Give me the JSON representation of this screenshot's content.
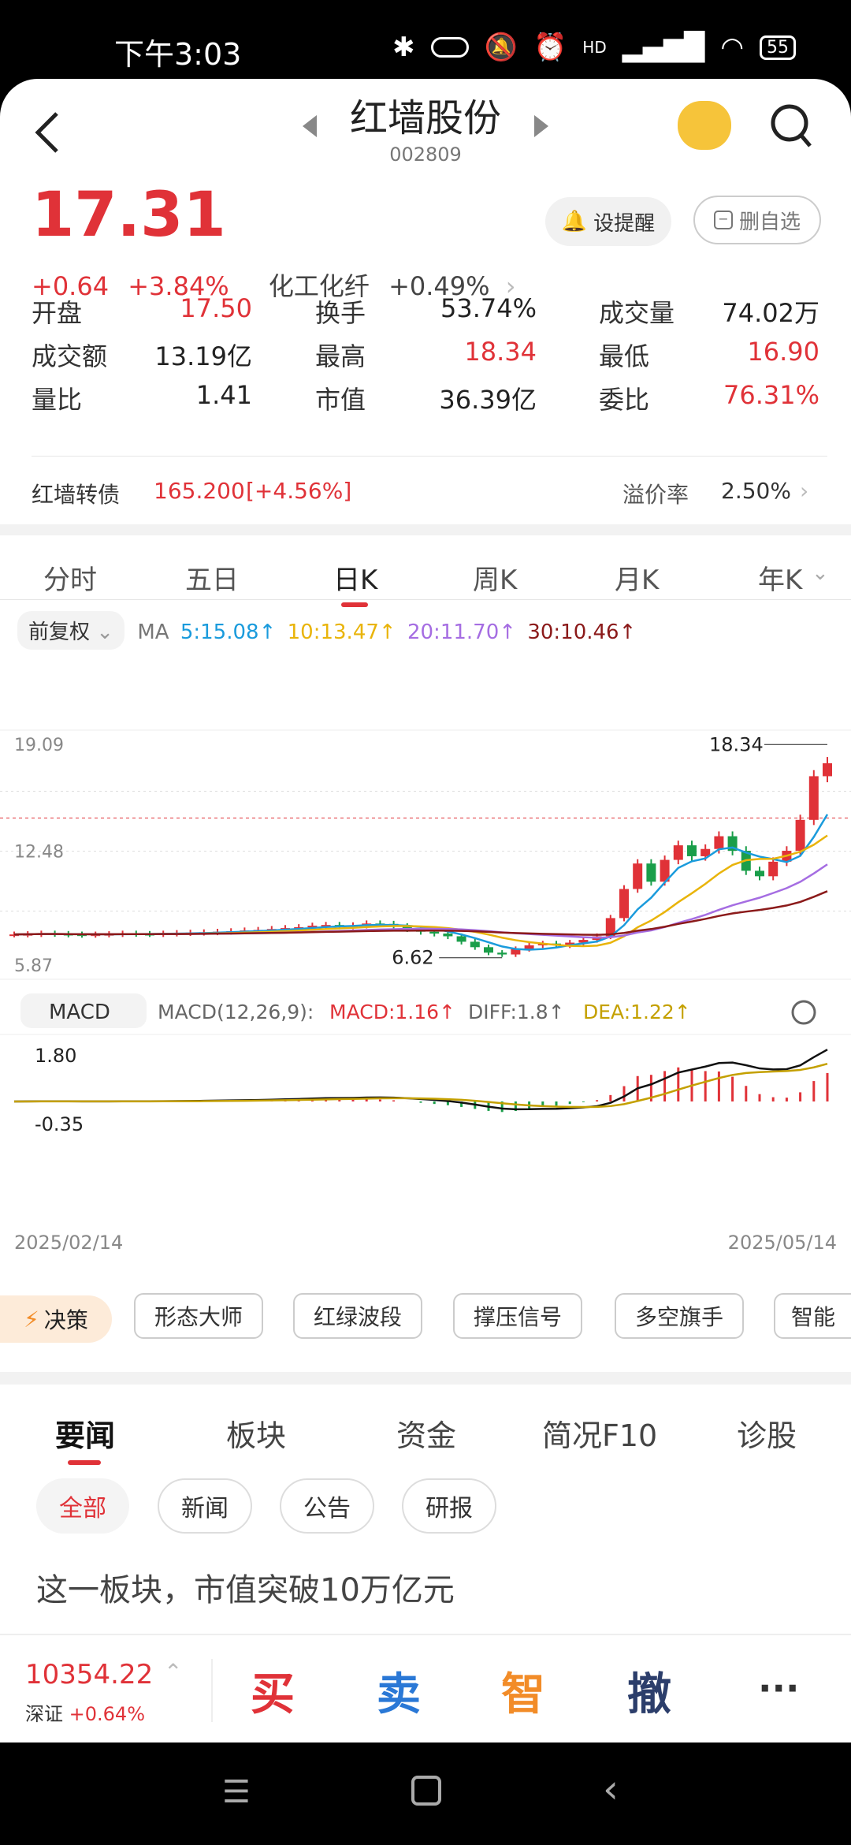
{
  "status": {
    "time": "下午3:03",
    "battery": "55",
    "net": "HD"
  },
  "header": {
    "name": "红墙股份",
    "code": "002809"
  },
  "quote": {
    "price": "17.31",
    "change": "+0.64",
    "pct": "+3.84%",
    "sector": "化工化纤",
    "sector_pct": "+0.49%",
    "alert_label": "设提醒",
    "watch_label": "删自选",
    "stats": [
      {
        "label": "开盘",
        "value": "17.50",
        "color": "red"
      },
      {
        "label": "换手",
        "value": "53.74%",
        "color": "black"
      },
      {
        "label": "成交量",
        "value": "74.02万",
        "color": "black"
      },
      {
        "label": "成交额",
        "value": "13.19亿",
        "color": "black"
      },
      {
        "label": "最高",
        "value": "18.34",
        "color": "red"
      },
      {
        "label": "最低",
        "value": "16.90",
        "color": "red"
      },
      {
        "label": "量比",
        "value": "1.41",
        "color": "black"
      },
      {
        "label": "市值",
        "value": "36.39亿",
        "color": "black"
      },
      {
        "label": "委比",
        "value": "76.31%",
        "color": "red"
      }
    ],
    "bond": {
      "label": "红墙转债",
      "value": "165.200",
      "pct": "[+4.56%]",
      "premium_label": "溢价率",
      "premium": "2.50%"
    }
  },
  "chart_tabs": [
    "分时",
    "五日",
    "日K",
    "周K",
    "月K",
    "年K"
  ],
  "chart_tab_active": "日K",
  "ma": {
    "adjust": "前复权",
    "label": "MA",
    "ma5": "5:15.08",
    "ma10": "10:13.47",
    "ma20": "20:11.70",
    "ma30": "30:10.46",
    "up": "↑"
  },
  "chart_data": {
    "type": "candlestick",
    "price_axis": {
      "top": "19.09",
      "mid": "12.48",
      "bottom": "5.87"
    },
    "high_label": "18.34",
    "low_label": "6.62",
    "x_start": "2025/02/14",
    "x_end": "2025/05/14",
    "macd_title": "MACD",
    "macd_params": "MACD(12,26,9):",
    "macd_val": "MACD:1.16",
    "diff_val": "DIFF:1.8",
    "dea_val": "DEA:1.22",
    "macd_top": "1.80",
    "macd_bottom": "-0.35",
    "colors": {
      "up": "#e03238",
      "down": "#1a9e4a",
      "ma5": "#1a9bdc",
      "ma10": "#e9b40a",
      "ma20": "#a56de2",
      "ma30": "#8b1a1a"
    },
    "closes": [
      7.9,
      7.92,
      7.95,
      7.93,
      7.9,
      7.88,
      7.9,
      7.92,
      7.95,
      7.93,
      7.92,
      7.95,
      7.98,
      8.0,
      8.02,
      8.05,
      8.08,
      8.12,
      8.15,
      8.2,
      8.25,
      8.3,
      8.38,
      8.42,
      8.35,
      8.4,
      8.5,
      8.48,
      8.35,
      8.2,
      8.05,
      7.95,
      7.8,
      7.5,
      7.2,
      6.9,
      6.8,
      7.1,
      7.3,
      7.4,
      7.3,
      7.45,
      7.6,
      7.8,
      8.8,
      10.4,
      11.8,
      10.8,
      12.0,
      12.8,
      12.2,
      12.6,
      13.3,
      12.5,
      11.4,
      11.1,
      11.9,
      12.5,
      14.2,
      16.6,
      17.31
    ]
  },
  "strategy": {
    "badge": "决策",
    "tools": [
      "形态大师",
      "红绿波段",
      "撑压信号",
      "多空旗手",
      "智能"
    ]
  },
  "news_tabs": [
    "要闻",
    "板块",
    "资金",
    "简况F10",
    "诊股"
  ],
  "news_filters": [
    "全部",
    "新闻",
    "公告",
    "研报"
  ],
  "news": [
    {
      "title": "这一板块，市值突破10万亿元"
    }
  ],
  "bottom": {
    "index_value": "10354.22",
    "index_name": "深证",
    "index_pct": "+0.64%",
    "buy": "买",
    "sell": "卖",
    "smart": "智",
    "cancel": "撤",
    "more": "···"
  }
}
